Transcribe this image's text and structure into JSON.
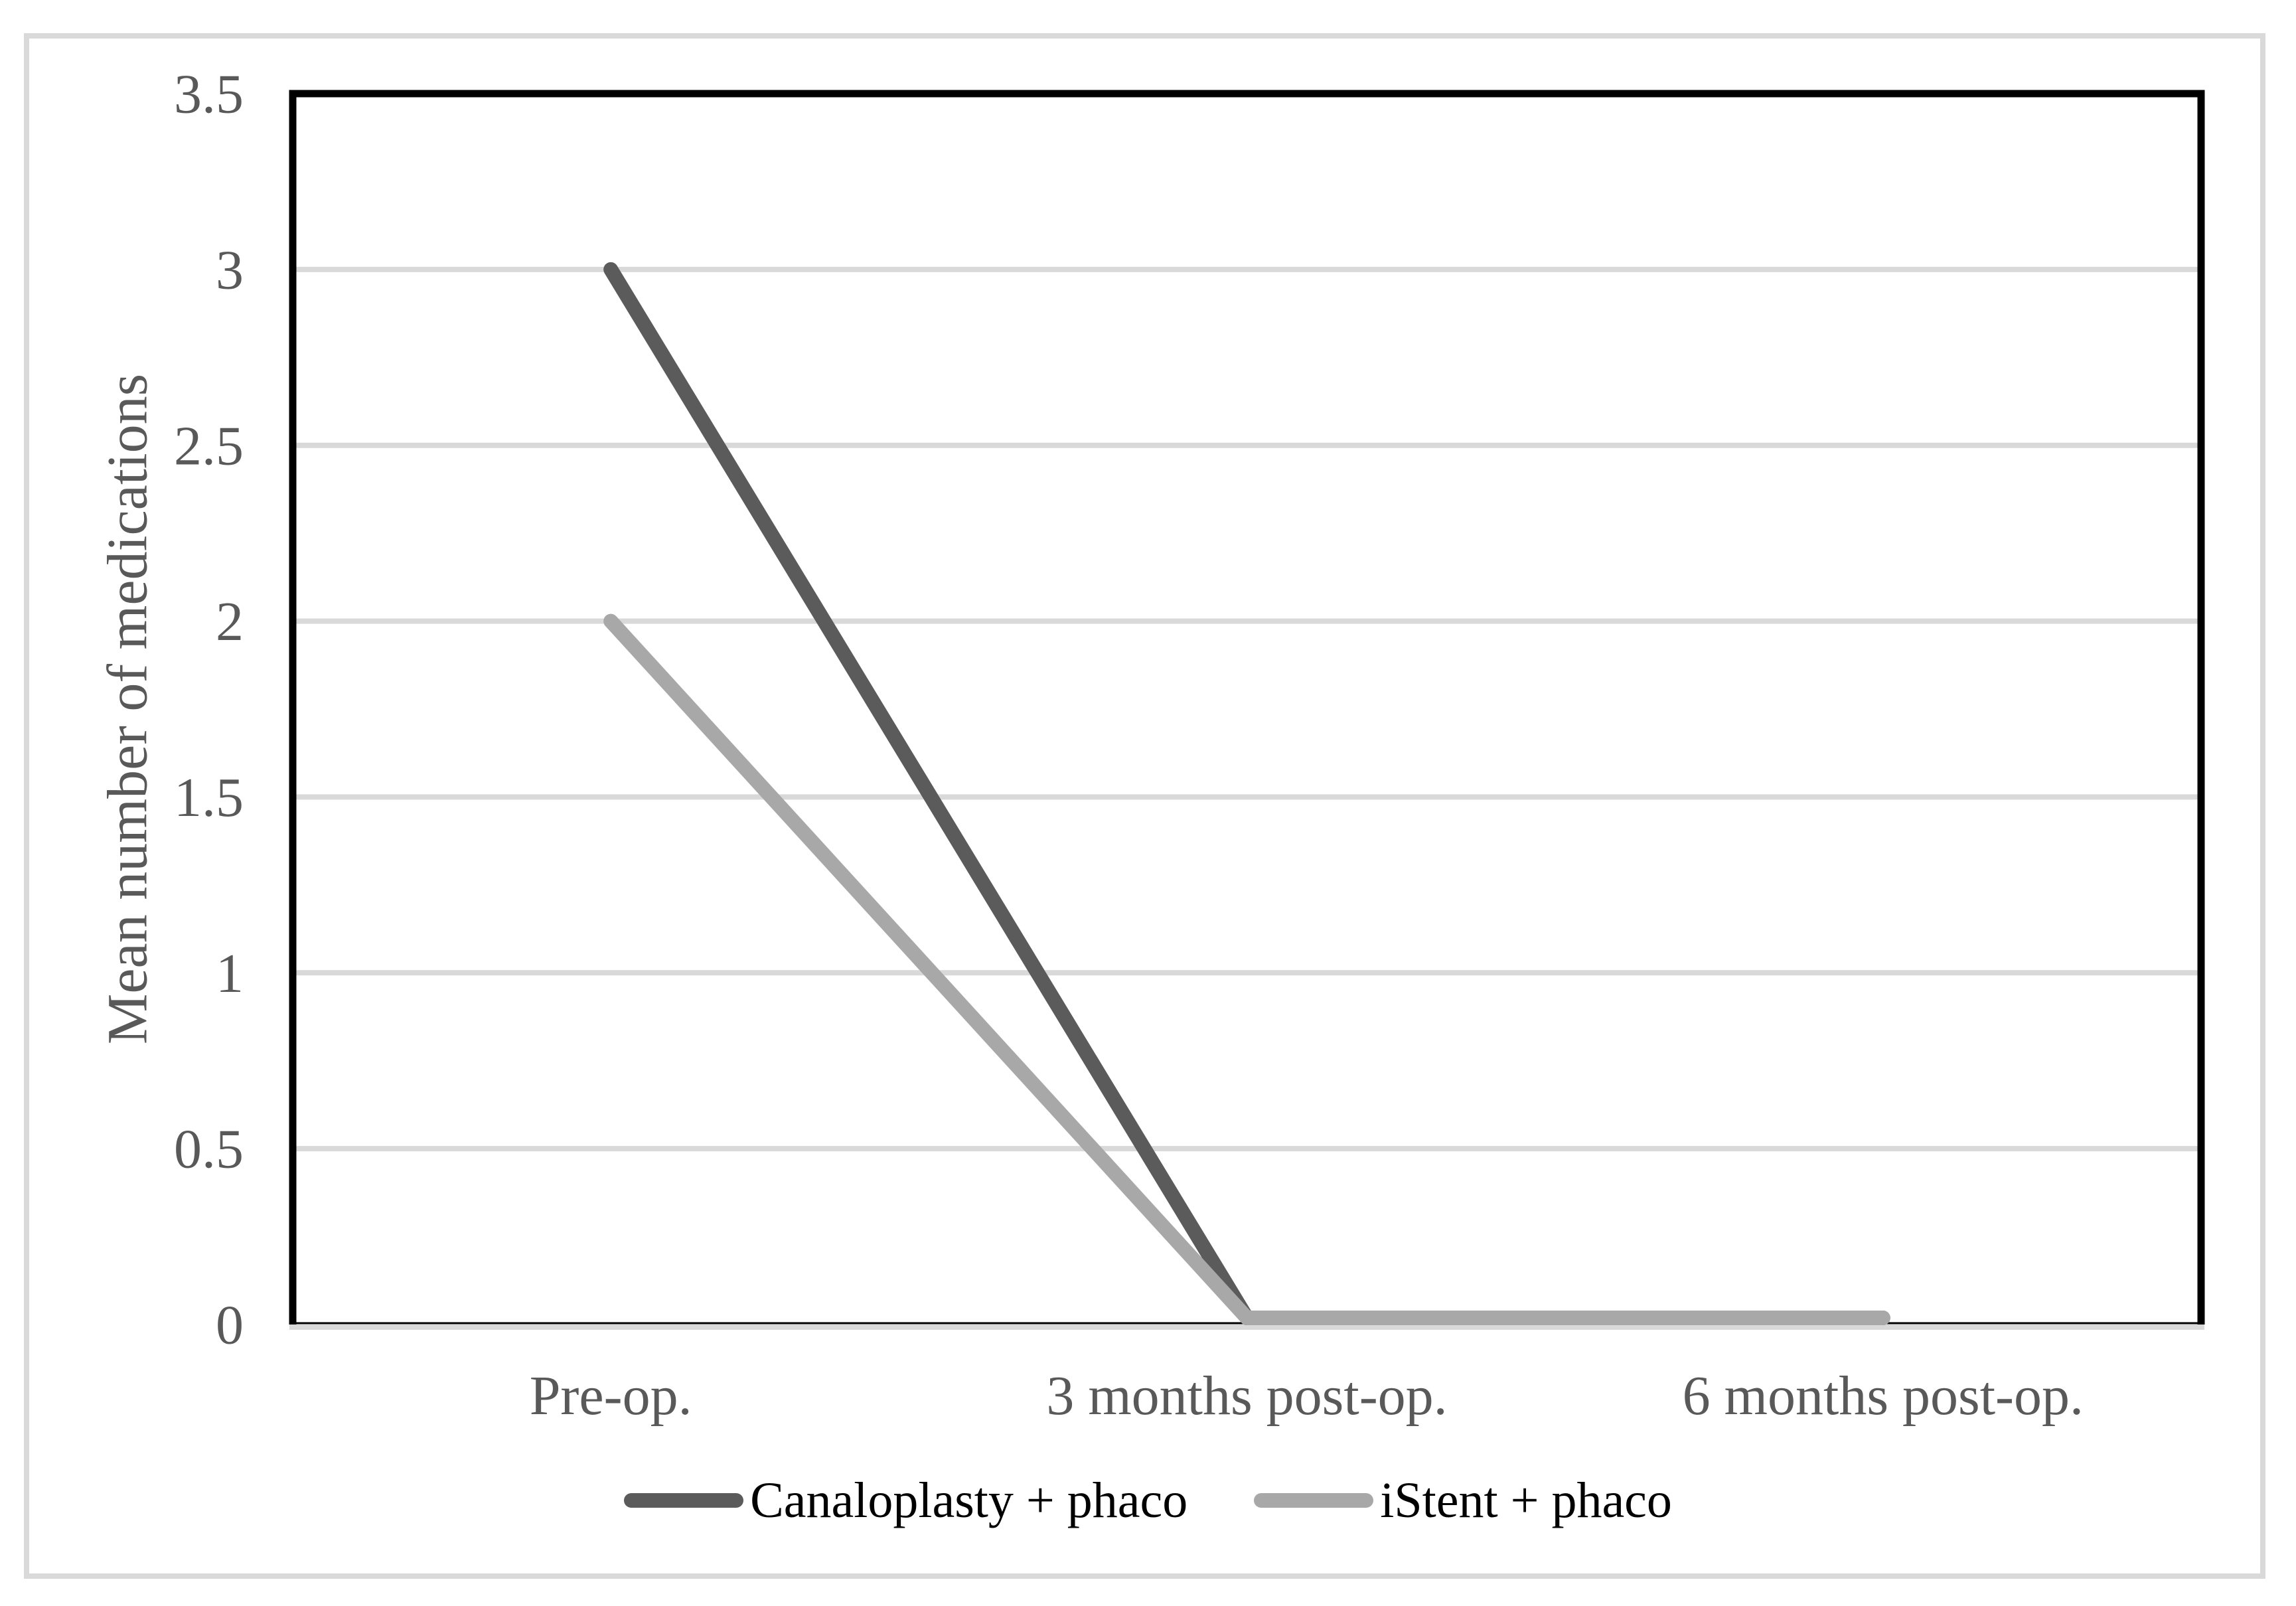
{
  "figure": {
    "background": "#ffffff",
    "frame_border_color": "#d9d9d9"
  },
  "chart_data": {
    "type": "line",
    "title": "",
    "categories": [
      "Pre-op.",
      "3 months post-op.",
      "6 months post-op."
    ],
    "series": [
      {
        "name": "Canaloplasty + phaco",
        "values": [
          3,
          0,
          0
        ],
        "color": "#5b5b5b"
      },
      {
        "name": "iStent + phaco",
        "values": [
          2,
          0,
          0
        ],
        "color": "#a8a8a8"
      }
    ],
    "xlabel": "",
    "ylabel": "Mean number of medications",
    "ylim": [
      0,
      3.5
    ],
    "ytick_step": 0.5,
    "yticks": [
      "0",
      "0.5",
      "1",
      "1.5",
      "2",
      "2.5",
      "3",
      "3.5"
    ],
    "grid": true,
    "gridline_color": "#d9d9d9",
    "axis_text_color": "#595959",
    "plot_border_color": "#000000",
    "axis_line_color": "#000000",
    "legend_position": "bottom",
    "legend_text_color": "#000000"
  }
}
